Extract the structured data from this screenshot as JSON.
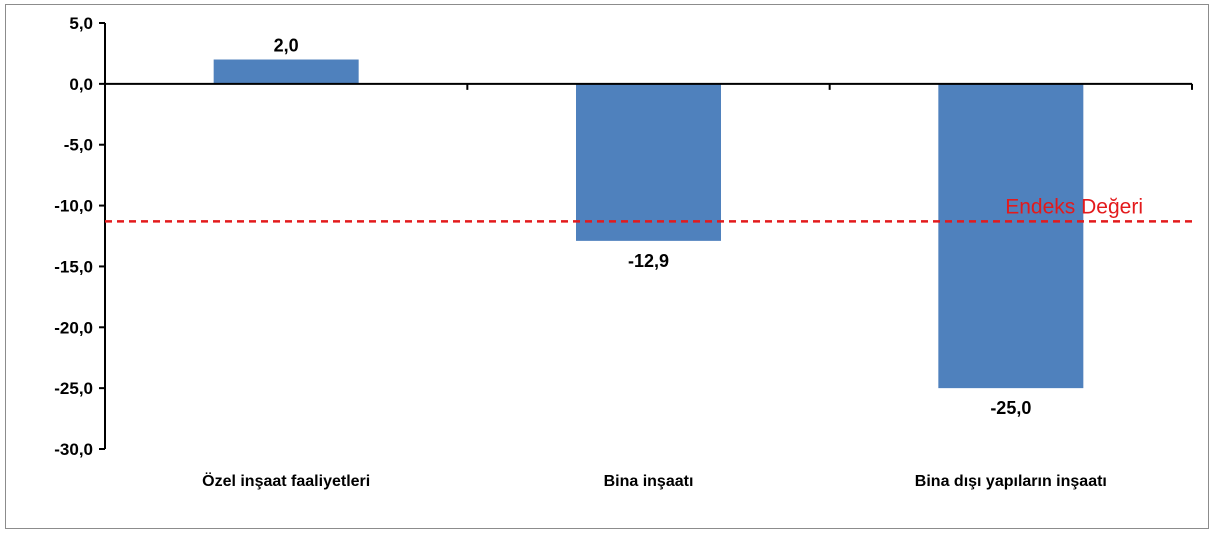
{
  "chart_data": {
    "type": "bar",
    "categories": [
      "Özel inşaat faaliyetleri",
      "Bina inşaatı",
      "Bina dışı yapıların inşaatı"
    ],
    "values": [
      2.0,
      -12.9,
      -25.0
    ],
    "value_labels": [
      "2,0",
      "-12,9",
      "-25,0"
    ],
    "ylim": [
      -30,
      5
    ],
    "yticks": [
      5,
      0,
      -5,
      -10,
      -15,
      -20,
      -25,
      -30
    ],
    "ytick_labels": [
      "5,0",
      "0,0",
      "-5,0",
      "-10,0",
      "-15,0",
      "-20,0",
      "-25,0",
      "-30,0"
    ],
    "reference_line": {
      "label": "Endeks Değeri",
      "value": -11.3,
      "color": "#e31a1c"
    },
    "bar_color": "#4f81bd",
    "grid": false,
    "title": "",
    "xlabel": "",
    "ylabel": ""
  }
}
